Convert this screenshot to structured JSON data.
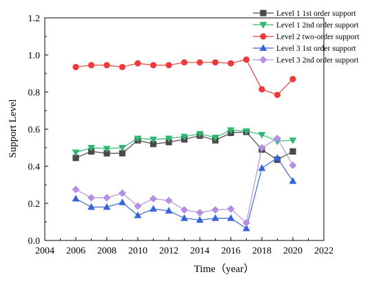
{
  "chart_data": {
    "type": "line",
    "title": "",
    "xlabel": "Time（year）",
    "ylabel": "Support Level",
    "xlim": [
      2004,
      2022
    ],
    "ylim": [
      0.0,
      1.2
    ],
    "xticks": [
      2004,
      2006,
      2008,
      2010,
      2012,
      2014,
      2016,
      2018,
      2020,
      2022
    ],
    "yticks": [
      0.0,
      0.2,
      0.4,
      0.6,
      0.8,
      1.0,
      1.2
    ],
    "xtick_labels": [
      "2004",
      "2006",
      "2008",
      "2010",
      "2012",
      "2014",
      "2016",
      "2018",
      "2020",
      "2022"
    ],
    "ytick_labels": [
      "0.0",
      "0.2",
      "0.4",
      "0.6",
      "0.8",
      "1.0",
      "1.2"
    ],
    "grid": false,
    "legend_position": "top-right",
    "x": [
      2006,
      2007,
      2008,
      2009,
      2010,
      2011,
      2012,
      2013,
      2014,
      2015,
      2016,
      2017,
      2018,
      2019,
      2020
    ],
    "series": [
      {
        "name": "Level 1 1st order support",
        "color": "#4a4a4a",
        "marker": "square",
        "values": [
          0.445,
          0.48,
          0.47,
          0.47,
          0.54,
          0.52,
          0.53,
          0.545,
          0.565,
          0.54,
          0.58,
          0.585,
          0.49,
          0.435,
          0.48
        ]
      },
      {
        "name": "Level 1 2nd order support",
        "color": "#2eb872",
        "marker": "triangle-down",
        "values": [
          0.475,
          0.5,
          0.495,
          0.5,
          0.55,
          0.545,
          0.55,
          0.56,
          0.575,
          0.555,
          0.595,
          0.59,
          0.57,
          0.535,
          0.54
        ]
      },
      {
        "name": "Level 2 two-order support",
        "color": "#ee3a3a",
        "marker": "circle",
        "values": [
          0.935,
          0.945,
          0.945,
          0.935,
          0.955,
          0.945,
          0.945,
          0.96,
          0.96,
          0.96,
          0.955,
          0.975,
          0.815,
          0.785,
          0.87
        ]
      },
      {
        "name": "Level 3 1st order support",
        "color": "#3565d8",
        "marker": "triangle-up",
        "values": [
          0.225,
          0.18,
          0.18,
          0.205,
          0.135,
          0.17,
          0.16,
          0.12,
          0.11,
          0.12,
          0.12,
          0.065,
          0.39,
          0.445,
          0.32
        ]
      },
      {
        "name": "Level 3 2nd order support",
        "color": "#b58ee6",
        "marker": "diamond",
        "values": [
          0.275,
          0.23,
          0.23,
          0.255,
          0.185,
          0.225,
          0.215,
          0.165,
          0.15,
          0.165,
          0.17,
          0.095,
          0.5,
          0.55,
          0.405
        ]
      }
    ]
  }
}
